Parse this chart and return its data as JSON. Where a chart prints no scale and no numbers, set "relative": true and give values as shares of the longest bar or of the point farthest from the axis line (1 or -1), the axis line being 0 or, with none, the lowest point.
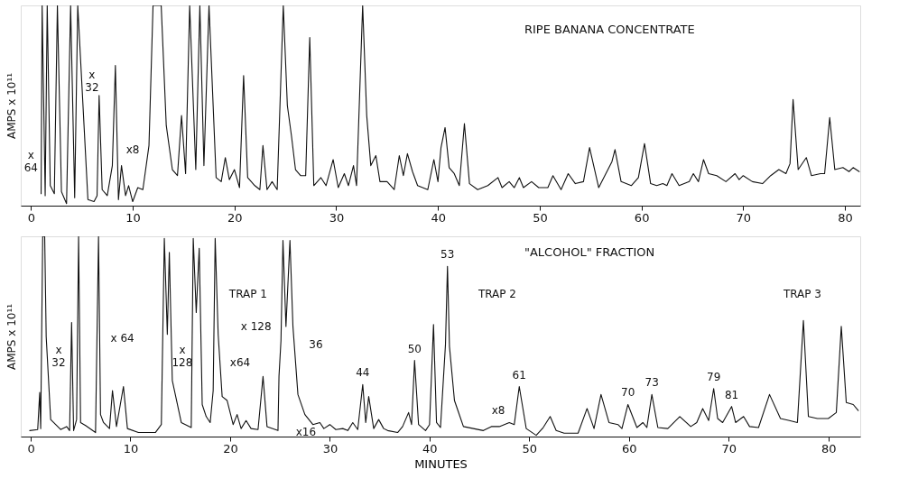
{
  "chart_data": [
    {
      "type": "line",
      "title": "RIPE BANANA CONCENTRATE",
      "ylabel": "AMPS x 10¹¹",
      "relative": true,
      "xlim": [
        -1,
        81.5
      ],
      "xticks": [
        0,
        10,
        20,
        30,
        40,
        50,
        60,
        70,
        80
      ],
      "grid": false,
      "marker": "none",
      "line_style": "solid",
      "series": [
        {
          "color": "#111111",
          "x": [
            1.0,
            1.1,
            1.4,
            1.6,
            1.9,
            2.3,
            2.6,
            3.0,
            3.5,
            3.9,
            4.3,
            4.6,
            5.6,
            6.2,
            6.5,
            6.7,
            7.0,
            7.5,
            8.0,
            8.3,
            8.6,
            8.9,
            9.3,
            9.6,
            10.0,
            10.5,
            11.0,
            11.6,
            12.0,
            12.8,
            13.3,
            13.9,
            14.4,
            14.8,
            15.2,
            15.6,
            16.2,
            16.6,
            17.0,
            17.5,
            18.2,
            18.7,
            19.1,
            19.5,
            20.0,
            20.5,
            20.9,
            21.3,
            22.0,
            22.5,
            22.8,
            23.2,
            23.7,
            24.2,
            24.8,
            25.2,
            25.6,
            26.0,
            26.5,
            27.0,
            27.4,
            27.8,
            28.5,
            29.0,
            29.7,
            30.2,
            30.8,
            31.2,
            31.7,
            32.0,
            32.6,
            33.0,
            33.4,
            33.9,
            34.3,
            35.0,
            35.7,
            36.2,
            36.6,
            37.0,
            37.5,
            38.0,
            39.0,
            39.6,
            40.0,
            40.3,
            40.7,
            41.1,
            41.6,
            42.1,
            42.6,
            43.1,
            43.9,
            44.9,
            45.9,
            46.3,
            47.0,
            47.5,
            48.0,
            48.4,
            49.2,
            49.9,
            50.8,
            51.3,
            52.1,
            52.8,
            53.5,
            54.3,
            54.9,
            55.8,
            57.1,
            57.4,
            58.0,
            59.0,
            59.7,
            60.3,
            60.9,
            61.5,
            62.1,
            62.5,
            63.0,
            63.7,
            64.7,
            65.1,
            65.6,
            66.1,
            66.6,
            67.4,
            68.3,
            69.2,
            69.6,
            70.0,
            70.9,
            71.9,
            72.7,
            73.5,
            74.2,
            74.6,
            74.9,
            75.4,
            76.2,
            76.7,
            77.6,
            78.0,
            78.5,
            79.0,
            79.8,
            80.4,
            80.8,
            81.4
          ],
          "values": [
            0.06,
            1.0,
            0.05,
            1.0,
            0.1,
            0.06,
            1.0,
            0.07,
            0.01,
            1.0,
            0.04,
            1.0,
            0.03,
            0.02,
            0.05,
            0.55,
            0.08,
            0.05,
            0.2,
            0.7,
            0.03,
            0.2,
            0.05,
            0.1,
            0.02,
            0.09,
            0.08,
            0.3,
            1.0,
            1.0,
            0.4,
            0.18,
            0.15,
            0.45,
            0.16,
            1.0,
            0.18,
            1.0,
            0.2,
            1.0,
            0.14,
            0.12,
            0.24,
            0.13,
            0.18,
            0.09,
            0.65,
            0.14,
            0.1,
            0.08,
            0.3,
            0.08,
            0.12,
            0.08,
            1.0,
            0.5,
            0.35,
            0.18,
            0.15,
            0.15,
            0.84,
            0.1,
            0.14,
            0.1,
            0.23,
            0.09,
            0.16,
            0.1,
            0.2,
            0.1,
            1.0,
            0.45,
            0.2,
            0.25,
            0.12,
            0.12,
            0.08,
            0.25,
            0.15,
            0.26,
            0.17,
            0.1,
            0.08,
            0.23,
            0.12,
            0.29,
            0.39,
            0.19,
            0.16,
            0.1,
            0.41,
            0.11,
            0.08,
            0.1,
            0.14,
            0.09,
            0.12,
            0.09,
            0.14,
            0.09,
            0.12,
            0.09,
            0.09,
            0.15,
            0.08,
            0.16,
            0.11,
            0.12,
            0.29,
            0.09,
            0.22,
            0.28,
            0.12,
            0.1,
            0.14,
            0.31,
            0.11,
            0.1,
            0.11,
            0.1,
            0.16,
            0.1,
            0.12,
            0.16,
            0.12,
            0.23,
            0.16,
            0.15,
            0.12,
            0.16,
            0.13,
            0.15,
            0.12,
            0.11,
            0.15,
            0.18,
            0.16,
            0.21,
            0.53,
            0.18,
            0.24,
            0.15,
            0.16,
            0.16,
            0.44,
            0.18,
            0.19,
            0.17,
            0.19,
            0.17
          ]
        }
      ],
      "annotations": [
        "x 64",
        "x 32",
        "x8"
      ]
    },
    {
      "type": "line",
      "title": "\"ALCOHOL\" FRACTION",
      "xlabel": "MINUTES",
      "ylabel": "AMPS x 10¹¹",
      "relative": true,
      "xlim": [
        -1,
        83.2
      ],
      "xticks": [
        0,
        10,
        20,
        30,
        40,
        50,
        60,
        70,
        80
      ],
      "grid": false,
      "marker": "none",
      "line_style": "solid",
      "series": [
        {
          "color": "#111111",
          "x": [
            -0.1,
            0.7,
            0.9,
            1.0,
            1.2,
            1.4,
            1.55,
            2.0,
            3.0,
            3.6,
            3.9,
            4.1,
            4.3,
            4.6,
            4.8,
            5.0,
            5.5,
            6.5,
            6.8,
            7.0,
            7.3,
            7.9,
            8.2,
            8.6,
            9.3,
            9.7,
            10.8,
            12.5,
            13.1,
            13.4,
            13.7,
            13.9,
            14.2,
            15.1,
            16.1,
            16.3,
            16.6,
            16.9,
            17.2,
            17.6,
            18.0,
            18.3,
            18.5,
            18.8,
            19.2,
            19.7,
            20.3,
            20.7,
            21.1,
            21.6,
            22.1,
            22.8,
            23.3,
            23.7,
            24.8,
            24.9,
            25.1,
            25.3,
            25.6,
            26.0,
            26.3,
            26.8,
            27.5,
            28.3,
            29.0,
            29.4,
            30.0,
            30.6,
            31.3,
            31.8,
            32.3,
            32.8,
            33.3,
            33.6,
            33.9,
            34.4,
            34.9,
            35.4,
            35.8,
            36.8,
            37.3,
            37.9,
            38.2,
            38.5,
            38.9,
            39.6,
            40.0,
            40.4,
            40.7,
            41.1,
            41.6,
            41.8,
            42.0,
            42.5,
            43.4,
            44.4,
            45.4,
            46.2,
            47.0,
            48.0,
            48.5,
            49.0,
            49.7,
            50.7,
            51.4,
            52.1,
            52.7,
            53.5,
            54.9,
            55.8,
            56.5,
            57.2,
            58.0,
            58.9,
            59.3,
            59.9,
            60.8,
            61.4,
            61.8,
            62.3,
            62.9,
            63.9,
            65.1,
            66.2,
            66.8,
            67.4,
            68.0,
            68.5,
            68.9,
            69.4,
            70.3,
            70.7,
            71.5,
            72.1,
            73.0,
            74.1,
            75.2,
            76.1,
            76.9,
            77.5,
            78.0,
            78.9,
            80.0,
            80.8,
            81.3,
            81.8,
            82.5,
            83.0
          ],
          "values": [
            0.03,
            0.035,
            0.22,
            0.04,
            1.0,
            1.0,
            0.5,
            0.085,
            0.035,
            0.05,
            0.03,
            0.57,
            0.03,
            0.085,
            1.0,
            0.07,
            0.055,
            0.02,
            1.0,
            0.11,
            0.07,
            0.04,
            0.23,
            0.05,
            0.25,
            0.04,
            0.02,
            0.02,
            0.06,
            0.99,
            0.51,
            0.92,
            0.28,
            0.07,
            0.045,
            0.99,
            0.62,
            0.94,
            0.16,
            0.1,
            0.07,
            0.23,
            0.99,
            0.51,
            0.2,
            0.18,
            0.06,
            0.11,
            0.04,
            0.08,
            0.04,
            0.035,
            0.3,
            0.05,
            0.03,
            0.3,
            0.48,
            0.98,
            0.55,
            0.98,
            0.55,
            0.21,
            0.11,
            0.06,
            0.07,
            0.04,
            0.06,
            0.035,
            0.04,
            0.03,
            0.07,
            0.035,
            0.26,
            0.07,
            0.2,
            0.04,
            0.085,
            0.04,
            0.03,
            0.02,
            0.05,
            0.12,
            0.06,
            0.38,
            0.06,
            0.03,
            0.06,
            0.56,
            0.07,
            0.045,
            0.46,
            0.85,
            0.45,
            0.18,
            0.05,
            0.04,
            0.03,
            0.05,
            0.05,
            0.07,
            0.06,
            0.25,
            0.04,
            0.006,
            0.045,
            0.1,
            0.03,
            0.017,
            0.017,
            0.14,
            0.04,
            0.21,
            0.07,
            0.06,
            0.04,
            0.16,
            0.045,
            0.07,
            0.045,
            0.21,
            0.045,
            0.04,
            0.1,
            0.05,
            0.07,
            0.14,
            0.08,
            0.24,
            0.09,
            0.07,
            0.15,
            0.07,
            0.1,
            0.05,
            0.045,
            0.21,
            0.09,
            0.08,
            0.07,
            0.58,
            0.1,
            0.09,
            0.09,
            0.12,
            0.55,
            0.17,
            0.16,
            0.13
          ]
        }
      ],
      "annotations": [
        "x 32",
        "x 64",
        "x 128",
        "x64",
        "TRAP 1",
        "x 128",
        "36",
        "x16",
        {
          "text": "44",
          "x": 33.3,
          "y": 0.26
        },
        {
          "text": "50",
          "x": 38.5,
          "y": 0.38
        },
        {
          "text": "53",
          "x": 41.8,
          "y": 0.85
        },
        "TRAP 2",
        "x8",
        {
          "text": "61",
          "x": 49.0,
          "y": 0.25
        },
        {
          "text": "70",
          "x": 59.9,
          "y": 0.16
        },
        {
          "text": "73",
          "x": 62.3,
          "y": 0.21
        },
        {
          "text": "79",
          "x": 68.5,
          "y": 0.24
        },
        {
          "text": "81",
          "x": 70.3,
          "y": 0.15
        },
        "TRAP 3"
      ]
    }
  ]
}
